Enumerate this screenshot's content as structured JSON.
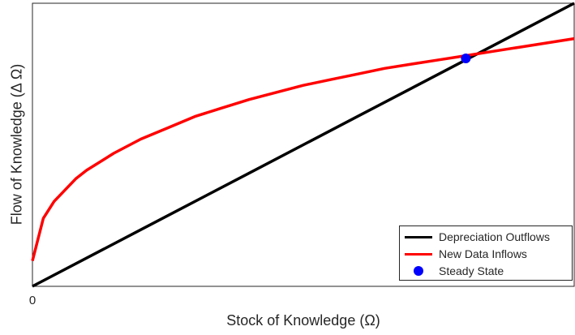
{
  "chart_data": {
    "type": "line",
    "title": "",
    "xlabel": "Stock of Knowledge (Ω)",
    "ylabel": "Flow of Knowledge (Δ Ω)",
    "x_tick_labels": [
      "0"
    ],
    "xlim": [
      0,
      1
    ],
    "ylim": [
      0,
      1
    ],
    "grid": false,
    "legend_position": "bottom-right",
    "series": [
      {
        "name": "Depreciation Outflows",
        "color": "#000000",
        "x": [
          0,
          0.2,
          0.4,
          0.6,
          0.8,
          1.0
        ],
        "y": [
          0,
          0.2,
          0.4,
          0.6,
          0.8,
          1.0
        ]
      },
      {
        "name": "New Data Inflows",
        "color": "#ff0000",
        "x": [
          0,
          0.02,
          0.04,
          0.06,
          0.08,
          0.1,
          0.15,
          0.2,
          0.25,
          0.3,
          0.35,
          0.4,
          0.45,
          0.5,
          0.55,
          0.6,
          0.65,
          0.7,
          0.75,
          0.8,
          0.85,
          0.9,
          0.95,
          1.0
        ],
        "y": [
          0.09,
          0.24,
          0.3,
          0.34,
          0.38,
          0.41,
          0.47,
          0.52,
          0.56,
          0.6,
          0.63,
          0.66,
          0.685,
          0.71,
          0.73,
          0.75,
          0.77,
          0.785,
          0.8,
          0.815,
          0.83,
          0.845,
          0.86,
          0.875
        ]
      },
      {
        "name": "Steady State",
        "color": "#0000ff",
        "type": "scatter",
        "x": [
          0.8
        ],
        "y": [
          0.805
        ]
      }
    ]
  }
}
